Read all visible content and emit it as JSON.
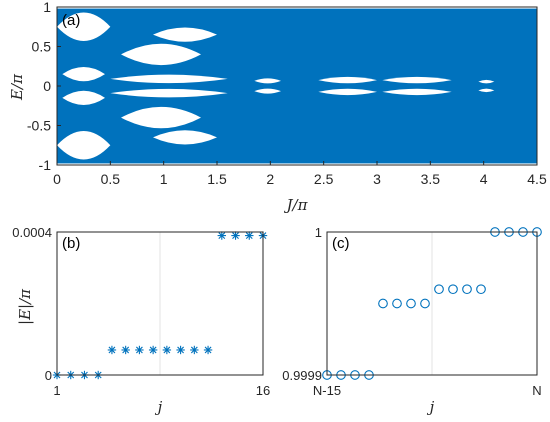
{
  "chart_data": [
    {
      "id": "a",
      "type": "area",
      "panel_label": "(a)",
      "xlabel": "J/π",
      "ylabel": "E/π",
      "xlim": [
        0,
        4.5
      ],
      "ylim": [
        -1,
        1
      ],
      "x_ticks": [
        "0",
        "0.5",
        "1",
        "1.5",
        "2",
        "2.5",
        "3",
        "3.5",
        "4",
        "4.5"
      ],
      "y_ticks": [
        "1",
        "0.5",
        "0",
        "-0.5",
        "-1"
      ],
      "fill_color": "#0072bd",
      "gap_color": "#ffffff",
      "gaps": [
        {
          "x": [
            0.0,
            0.5
          ],
          "y": [
            0.55,
            0.95
          ]
        },
        {
          "x": [
            0.05,
            0.45
          ],
          "y": [
            0.05,
            0.25
          ]
        },
        {
          "x": [
            0.05,
            0.45
          ],
          "y": [
            -0.25,
            -0.05
          ]
        },
        {
          "x": [
            0.0,
            0.5
          ],
          "y": [
            -0.95,
            -0.55
          ]
        },
        {
          "x": [
            0.6,
            1.35
          ],
          "y": [
            0.25,
            0.55
          ]
        },
        {
          "x": [
            0.6,
            1.35
          ],
          "y": [
            -0.55,
            -0.25
          ]
        },
        {
          "x": [
            0.5,
            1.6
          ],
          "y": [
            0.03,
            0.15
          ]
        },
        {
          "x": [
            0.5,
            1.6
          ],
          "y": [
            -0.15,
            -0.03
          ]
        },
        {
          "x": [
            1.85,
            2.1
          ],
          "y": [
            0.03,
            0.1
          ]
        },
        {
          "x": [
            1.85,
            2.1
          ],
          "y": [
            -0.1,
            -0.03
          ]
        },
        {
          "x": [
            2.45,
            3.0
          ],
          "y": [
            0.03,
            0.12
          ]
        },
        {
          "x": [
            2.45,
            3.0
          ],
          "y": [
            -0.12,
            -0.03
          ]
        },
        {
          "x": [
            3.05,
            3.7
          ],
          "y": [
            0.03,
            0.12
          ]
        },
        {
          "x": [
            3.05,
            3.7
          ],
          "y": [
            -0.12,
            -0.03
          ]
        },
        {
          "x": [
            3.95,
            4.1
          ],
          "y": [
            0.03,
            0.08
          ]
        },
        {
          "x": [
            3.95,
            4.1
          ],
          "y": [
            -0.08,
            -0.03
          ]
        },
        {
          "x": [
            0.9,
            1.5
          ],
          "y": [
            -0.75,
            -0.55
          ]
        },
        {
          "x": [
            0.9,
            1.5
          ],
          "y": [
            0.55,
            0.75
          ]
        }
      ]
    },
    {
      "id": "b",
      "type": "scatter",
      "panel_label": "(b)",
      "xlabel": "j",
      "ylabel": "|E|/π",
      "x_tick_labels": [
        "1",
        "16"
      ],
      "y_tick_labels": [
        "0.0004",
        "0"
      ],
      "xlim": [
        1,
        16
      ],
      "ylim": [
        0,
        0.0004
      ],
      "marker": "asterisk",
      "color": "#0072bd",
      "x": [
        1,
        2,
        3,
        4,
        5,
        6,
        7,
        8,
        9,
        10,
        11,
        12,
        13,
        14,
        15,
        16
      ],
      "y": [
        0.0,
        0.0,
        0.0,
        0.0,
        7e-05,
        7e-05,
        7e-05,
        7e-05,
        7e-05,
        7e-05,
        7e-05,
        7e-05,
        0.00039,
        0.00039,
        0.00039,
        0.00039
      ]
    },
    {
      "id": "c",
      "type": "scatter",
      "panel_label": "(c)",
      "xlabel": "j",
      "ylabel": "",
      "x_tick_labels": [
        "N-15",
        "N"
      ],
      "y_tick_labels": [
        "1",
        "0.9999"
      ],
      "xlim": [
        1,
        16
      ],
      "ylim": [
        0.9999,
        1.0
      ],
      "marker": "circle",
      "color": "#0072bd",
      "x": [
        1,
        2,
        3,
        4,
        5,
        6,
        7,
        8,
        9,
        10,
        11,
        12,
        13,
        14,
        15,
        16
      ],
      "y": [
        0.9999,
        0.9999,
        0.9999,
        0.9999,
        0.99995,
        0.99995,
        0.99995,
        0.99995,
        0.99996,
        0.99996,
        0.99996,
        0.99996,
        1.0,
        1.0,
        1.0,
        1.0
      ]
    }
  ]
}
